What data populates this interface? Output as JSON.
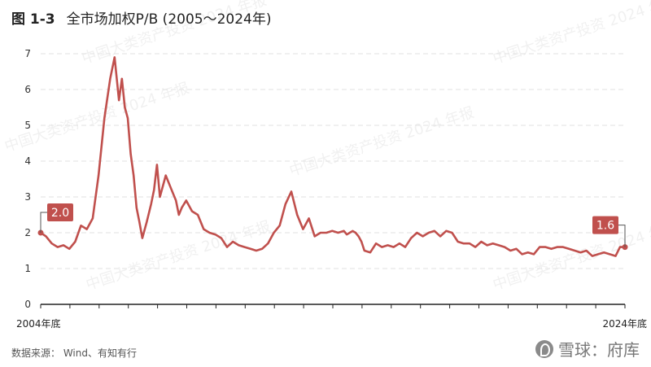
{
  "title": {
    "figure": "图 1-3",
    "text": "全市场加权P/B (2005～2024年)"
  },
  "source": "数据来源： Wind、有知有行",
  "brand": "雪球：府库",
  "watermark": "中国大类资产投资 2024 年报",
  "colors": {
    "line": "#c0504d",
    "label_bg": "#c0504d",
    "grid": "#e2e2e2",
    "axis": "#222222"
  },
  "chart_data": {
    "type": "line",
    "title": "全市场加权P/B (2005～2024年)",
    "xlabel": "",
    "ylabel": "",
    "ylim": [
      0,
      7
    ],
    "yticks": [
      "0",
      "1",
      "2",
      "3",
      "4",
      "5",
      "6",
      "7"
    ],
    "xlim": [
      2004.92,
      2024.92
    ],
    "x_tick_labels": [
      {
        "x": 2004.92,
        "label": "2004年底"
      },
      {
        "x": 2024.92,
        "label": "2024年底"
      }
    ],
    "grid": true,
    "annotations": [
      {
        "x": 2004.92,
        "y": 2.0,
        "label": "2.0"
      },
      {
        "x": 2024.92,
        "y": 1.6,
        "label": "1.6"
      }
    ],
    "series": [
      {
        "x": [
          2004.92,
          2005.1,
          2005.3,
          2005.5,
          2005.7,
          2005.9,
          2006.1,
          2006.3,
          2006.5,
          2006.7,
          2006.9,
          2007.1,
          2007.3,
          2007.45,
          2007.6,
          2007.7,
          2007.8,
          2007.9,
          2008.0,
          2008.1,
          2008.2,
          2008.3,
          2008.4,
          2008.55,
          2008.7,
          2008.8,
          2008.9,
          2009.0,
          2009.2,
          2009.4,
          2009.55,
          2009.65,
          2009.75,
          2009.9,
          2010.1,
          2010.3,
          2010.5,
          2010.7,
          2010.9,
          2011.1,
          2011.3,
          2011.5,
          2011.7,
          2011.9,
          2012.1,
          2012.3,
          2012.5,
          2012.7,
          2012.9,
          2013.1,
          2013.3,
          2013.5,
          2013.7,
          2013.9,
          2014.1,
          2014.3,
          2014.5,
          2014.7,
          2014.9,
          2015.1,
          2015.3,
          2015.4,
          2015.5,
          2015.6,
          2015.7,
          2015.8,
          2015.9,
          2016.0,
          2016.2,
          2016.4,
          2016.6,
          2016.8,
          2017.0,
          2017.2,
          2017.4,
          2017.6,
          2017.8,
          2018.0,
          2018.2,
          2018.4,
          2018.6,
          2018.8,
          2019.0,
          2019.2,
          2019.4,
          2019.6,
          2019.8,
          2020.0,
          2020.2,
          2020.4,
          2020.6,
          2020.8,
          2021.0,
          2021.2,
          2021.4,
          2021.6,
          2021.8,
          2022.0,
          2022.2,
          2022.4,
          2022.6,
          2022.8,
          2023.0,
          2023.2,
          2023.4,
          2023.6,
          2023.8,
          2024.0,
          2024.2,
          2024.4,
          2024.6,
          2024.75,
          2024.92
        ],
        "y": [
          2.0,
          1.9,
          1.7,
          1.6,
          1.65,
          1.55,
          1.75,
          2.2,
          2.1,
          2.4,
          3.6,
          5.2,
          6.3,
          6.9,
          5.7,
          6.3,
          5.5,
          5.2,
          4.2,
          3.6,
          2.7,
          2.3,
          1.85,
          2.3,
          2.8,
          3.2,
          3.9,
          3.0,
          3.6,
          3.2,
          2.9,
          2.5,
          2.7,
          2.9,
          2.6,
          2.5,
          2.1,
          2.0,
          1.95,
          1.85,
          1.6,
          1.75,
          1.65,
          1.6,
          1.55,
          1.5,
          1.55,
          1.7,
          2.0,
          2.2,
          2.8,
          3.15,
          2.5,
          2.1,
          2.4,
          1.9,
          2.0,
          2.0,
          2.05,
          2.0,
          2.05,
          1.95,
          2.0,
          2.05,
          2.0,
          1.9,
          1.75,
          1.5,
          1.45,
          1.7,
          1.6,
          1.65,
          1.6,
          1.7,
          1.6,
          1.85,
          2.0,
          1.9,
          2.0,
          2.05,
          1.9,
          2.05,
          2.0,
          1.75,
          1.7,
          1.7,
          1.6,
          1.75,
          1.65,
          1.7,
          1.65,
          1.6,
          1.5,
          1.55,
          1.4,
          1.45,
          1.4,
          1.6,
          1.6,
          1.55,
          1.6,
          1.6,
          1.55,
          1.5,
          1.45,
          1.5,
          1.35,
          1.4,
          1.45,
          1.4,
          1.35,
          1.6,
          1.6
        ]
      }
    ]
  }
}
